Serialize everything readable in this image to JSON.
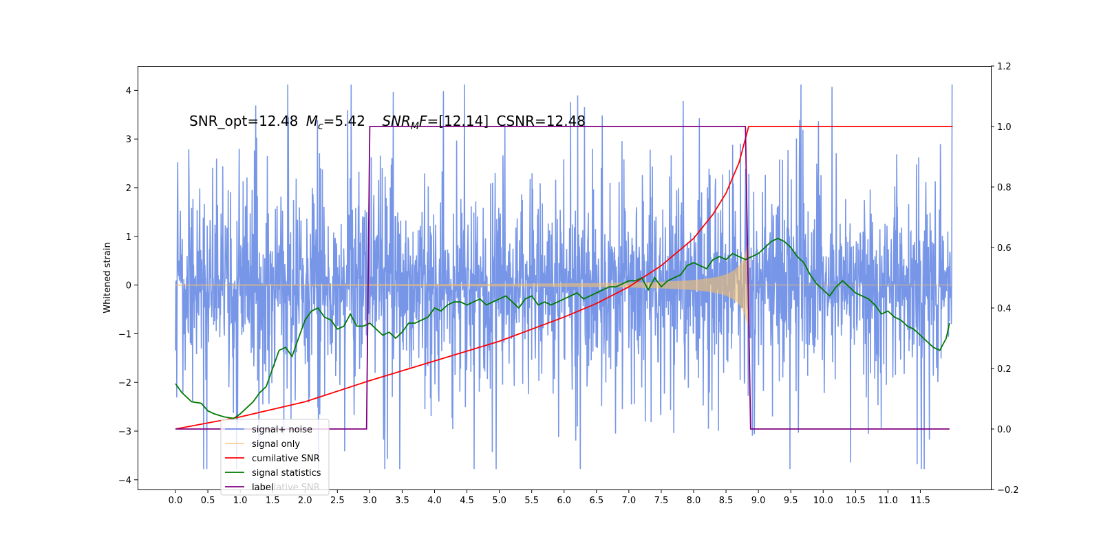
{
  "chart_data": {
    "type": "line",
    "title": "SNR_opt=12.48 $M_c$=5.42   $SNR_MF$=[12.14] CSNR=12.48",
    "title_parts": {
      "snr_opt": "SNR_opt=12.48",
      "mc_symbol": "M",
      "mc_sub": "c",
      "mc_value": "=5.42",
      "snrmf_symbol": "SNR",
      "snrmf_sub": "M",
      "snrmf_tail": "F",
      "snrmf_value": "=[12.14]",
      "csnr": "CSNR=12.48"
    },
    "xlabel": "",
    "ylabel": "Whitened strain",
    "y2label": "",
    "xlim": [
      -0.6,
      12.6
    ],
    "ylim": [
      -4.2,
      4.5
    ],
    "y2lim": [
      -0.2,
      1.2
    ],
    "x_ticks": [
      "0.0",
      "0.5",
      "1.0",
      "1.5",
      "2.0",
      "2.5",
      "3.0",
      "3.5",
      "4.0",
      "4.5",
      "5.0",
      "5.5",
      "6.0",
      "6.5",
      "7.0",
      "7.5",
      "8.0",
      "8.5",
      "9.0",
      "9.5",
      "10.0",
      "10.5",
      "11.0",
      "11.5"
    ],
    "y_ticks": [
      "−4",
      "−3",
      "−2",
      "−1",
      "0",
      "1",
      "2",
      "3",
      "4"
    ],
    "y2_ticks": [
      "−0.2",
      "0.0",
      "0.2",
      "0.4",
      "0.6",
      "0.8",
      "1.0",
      "1.2"
    ],
    "grid": false,
    "legend_position": "lower-left",
    "legend": [
      {
        "name": "signal+ noise",
        "color": "#7090e6"
      },
      {
        "name": "signal only",
        "color": "#f5bf6c"
      },
      {
        "name": "cumilative SNR",
        "color": "#ff0000"
      },
      {
        "name": "signal statistics",
        "color": "#007a00"
      },
      {
        "name": "label",
        "color": "#800080"
      }
    ],
    "legend_ghost_text": "cumilative SNR",
    "series": [
      {
        "name": "signal+ noise",
        "axis": "left",
        "color": "#7090e6",
        "description_values": {
          "x_start": 0.0,
          "x_end": 11.99,
          "mean": 0.0,
          "typical_range": [
            -3.0,
            3.2
          ],
          "max": 4.12,
          "min": -3.78
        }
      },
      {
        "name": "signal only",
        "axis": "left",
        "color": "#f5bf6c",
        "chirp": {
          "t_start": 0.0,
          "t_merge": 8.85,
          "amp_start": 0.02,
          "amp_merge": 1.0,
          "x_end": 12.0
        }
      },
      {
        "name": "cumilative SNR",
        "axis": "right",
        "color": "#ff0000",
        "x": [
          0.0,
          1.0,
          2.0,
          3.0,
          4.0,
          5.0,
          6.0,
          6.5,
          7.0,
          7.5,
          8.0,
          8.3,
          8.5,
          8.7,
          8.8,
          8.85,
          8.86,
          12.0
        ],
        "y": [
          0.0,
          0.04,
          0.09,
          0.16,
          0.225,
          0.29,
          0.37,
          0.415,
          0.47,
          0.54,
          0.63,
          0.71,
          0.78,
          0.88,
          0.96,
          1.0,
          1.0,
          1.0
        ]
      },
      {
        "name": "signal statistics",
        "axis": "right",
        "color": "#007a00",
        "x": [
          0.0,
          0.1,
          0.25,
          0.4,
          0.5,
          0.6,
          0.75,
          0.9,
          1.0,
          1.1,
          1.2,
          1.3,
          1.4,
          1.5,
          1.6,
          1.7,
          1.8,
          1.9,
          2.0,
          2.1,
          2.2,
          2.3,
          2.4,
          2.5,
          2.6,
          2.7,
          2.8,
          2.9,
          3.0,
          3.1,
          3.2,
          3.3,
          3.4,
          3.5,
          3.6,
          3.7,
          3.8,
          3.9,
          4.0,
          4.1,
          4.2,
          4.3,
          4.4,
          4.5,
          4.6,
          4.7,
          4.8,
          4.9,
          5.0,
          5.1,
          5.2,
          5.3,
          5.4,
          5.5,
          5.6,
          5.7,
          5.8,
          5.9,
          6.0,
          6.1,
          6.2,
          6.3,
          6.4,
          6.5,
          6.6,
          6.7,
          6.8,
          6.9,
          7.0,
          7.1,
          7.2,
          7.3,
          7.4,
          7.5,
          7.6,
          7.7,
          7.8,
          7.9,
          8.0,
          8.1,
          8.2,
          8.3,
          8.4,
          8.5,
          8.6,
          8.7,
          8.8,
          8.9,
          9.0,
          9.1,
          9.2,
          9.3,
          9.4,
          9.5,
          9.6,
          9.7,
          9.8,
          9.9,
          10.0,
          10.1,
          10.2,
          10.3,
          10.4,
          10.5,
          10.6,
          10.7,
          10.8,
          10.9,
          11.0,
          11.1,
          11.2,
          11.3,
          11.4,
          11.5,
          11.6,
          11.7,
          11.8,
          11.9,
          11.95
        ],
        "y": [
          0.15,
          0.12,
          0.09,
          0.085,
          0.06,
          0.05,
          0.04,
          0.035,
          0.05,
          0.07,
          0.09,
          0.12,
          0.14,
          0.2,
          0.26,
          0.27,
          0.24,
          0.3,
          0.36,
          0.39,
          0.4,
          0.37,
          0.36,
          0.33,
          0.34,
          0.38,
          0.34,
          0.34,
          0.35,
          0.33,
          0.31,
          0.32,
          0.3,
          0.32,
          0.35,
          0.35,
          0.36,
          0.37,
          0.4,
          0.39,
          0.41,
          0.42,
          0.42,
          0.41,
          0.42,
          0.43,
          0.41,
          0.42,
          0.43,
          0.44,
          0.42,
          0.4,
          0.43,
          0.44,
          0.41,
          0.42,
          0.41,
          0.42,
          0.43,
          0.44,
          0.45,
          0.43,
          0.44,
          0.45,
          0.46,
          0.47,
          0.47,
          0.48,
          0.49,
          0.49,
          0.5,
          0.46,
          0.5,
          0.47,
          0.49,
          0.5,
          0.51,
          0.54,
          0.55,
          0.54,
          0.53,
          0.56,
          0.57,
          0.56,
          0.58,
          0.57,
          0.56,
          0.57,
          0.58,
          0.6,
          0.62,
          0.63,
          0.62,
          0.6,
          0.57,
          0.55,
          0.51,
          0.48,
          0.46,
          0.44,
          0.47,
          0.49,
          0.47,
          0.45,
          0.44,
          0.43,
          0.41,
          0.38,
          0.39,
          0.37,
          0.36,
          0.34,
          0.33,
          0.31,
          0.29,
          0.27,
          0.26,
          0.3,
          0.35
        ]
      },
      {
        "name": "label",
        "axis": "right",
        "color": "#800080",
        "x": [
          0.0,
          2.95,
          3.0,
          8.8,
          8.88,
          11.95
        ],
        "y": [
          0.0,
          0.0,
          1.0,
          1.0,
          0.0,
          0.0
        ]
      }
    ]
  }
}
